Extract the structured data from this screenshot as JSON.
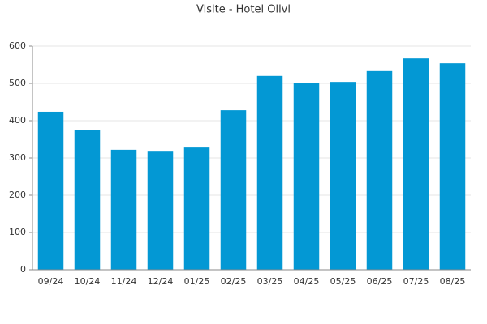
{
  "chart_data": {
    "type": "bar",
    "title": "Visite - Hotel Olivi",
    "categories": [
      "09/24",
      "10/24",
      "11/24",
      "12/24",
      "01/25",
      "02/25",
      "03/25",
      "04/25",
      "05/25",
      "06/25",
      "07/25",
      "08/25"
    ],
    "values": [
      424,
      374,
      322,
      317,
      328,
      428,
      520,
      502,
      504,
      533,
      567,
      554
    ],
    "color": "#0398d4",
    "ylim": [
      0,
      600
    ],
    "yticks": [
      0,
      100,
      200,
      300,
      400,
      500,
      600
    ],
    "grid": true
  }
}
